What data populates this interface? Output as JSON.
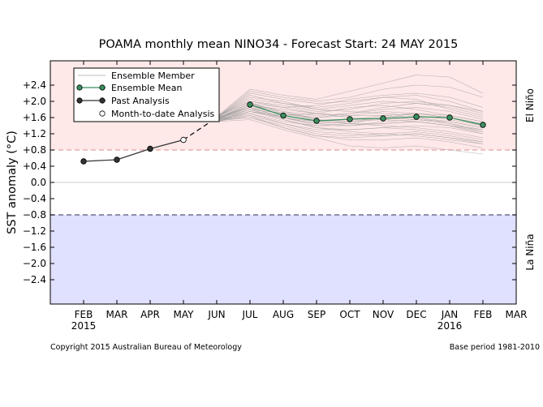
{
  "chart_data": {
    "type": "line",
    "title": "POAMA monthly mean NINO34 - Forecast Start: 24 MAY 2015",
    "ylabel": "SST anomaly (°C)",
    "ylim": [
      -3.0,
      3.0
    ],
    "xlim": [
      0,
      14
    ],
    "x_ticks": [
      {
        "pos": 1,
        "label": "FEB",
        "year": "2015"
      },
      {
        "pos": 2,
        "label": "MAR",
        "year": ""
      },
      {
        "pos": 3,
        "label": "APR",
        "year": ""
      },
      {
        "pos": 4,
        "label": "MAY",
        "year": ""
      },
      {
        "pos": 5,
        "label": "JUN",
        "year": ""
      },
      {
        "pos": 6,
        "label": "JUL",
        "year": ""
      },
      {
        "pos": 7,
        "label": "AUG",
        "year": ""
      },
      {
        "pos": 8,
        "label": "SEP",
        "year": ""
      },
      {
        "pos": 9,
        "label": "OCT",
        "year": ""
      },
      {
        "pos": 10,
        "label": "NOV",
        "year": ""
      },
      {
        "pos": 11,
        "label": "DEC",
        "year": ""
      },
      {
        "pos": 12,
        "label": "JAN",
        "year": "2016"
      },
      {
        "pos": 13,
        "label": "FEB",
        "year": ""
      },
      {
        "pos": 14,
        "label": "MAR",
        "year": ""
      }
    ],
    "y_ticks": [
      {
        "value": 2.4,
        "label": "+2.4"
      },
      {
        "value": 2.0,
        "label": "+2.0"
      },
      {
        "value": 1.6,
        "label": "+1.6"
      },
      {
        "value": 1.2,
        "label": "+1.2"
      },
      {
        "value": 0.8,
        "label": "+0.8"
      },
      {
        "value": 0.4,
        "label": "+0.4"
      },
      {
        "value": 0.0,
        "label": "0.0"
      },
      {
        "value": -0.4,
        "label": "−0.4"
      },
      {
        "value": -0.8,
        "label": "−0.8"
      },
      {
        "value": -1.2,
        "label": "−1.2"
      },
      {
        "value": -1.6,
        "label": "−1.6"
      },
      {
        "value": -2.0,
        "label": "−2.0"
      },
      {
        "value": -2.4,
        "label": "−2.4"
      }
    ],
    "thresholds": {
      "el_nino": 0.8,
      "la_nina": -0.8
    },
    "regions": [
      {
        "name": "El Niño",
        "from": 0.8,
        "to": 3.0,
        "color": "#ffe8e8"
      },
      {
        "name": "La Niña",
        "from": -3.0,
        "to": -0.8,
        "color": "#e0e0ff"
      }
    ],
    "past_analysis": {
      "name": "Past Analysis",
      "x": [
        1,
        2,
        3
      ],
      "y": [
        0.52,
        0.56,
        0.83
      ]
    },
    "month_to_date": {
      "name": "Month-to-date Analysis",
      "x": [
        4
      ],
      "y": [
        1.05
      ]
    },
    "connector": {
      "x": [
        4,
        5
      ],
      "y": [
        1.05,
        1.6
      ]
    },
    "ensemble_mean": {
      "name": "Ensemble Mean",
      "color": "#3a8f5e",
      "x": [
        6,
        7,
        8,
        9,
        10,
        11,
        12,
        13
      ],
      "y": [
        1.92,
        1.65,
        1.52,
        1.56,
        1.58,
        1.62,
        1.6,
        1.42
      ]
    },
    "ensemble_member_label": "Ensemble Member",
    "ensemble_members": [
      [
        1.62,
        2.05,
        1.95,
        1.85,
        1.95,
        2.1,
        2.05,
        1.8,
        1.6
      ],
      [
        1.58,
        1.9,
        1.75,
        1.65,
        1.7,
        1.8,
        1.85,
        1.75,
        1.55
      ],
      [
        1.55,
        1.8,
        1.6,
        1.45,
        1.4,
        1.45,
        1.5,
        1.4,
        1.3
      ],
      [
        1.6,
        2.25,
        2.1,
        2.0,
        2.1,
        2.3,
        2.4,
        2.35,
        2.1
      ],
      [
        1.5,
        1.7,
        1.45,
        1.25,
        1.2,
        1.15,
        1.2,
        1.1,
        1.0
      ],
      [
        1.57,
        1.95,
        1.85,
        1.9,
        2.05,
        2.15,
        2.2,
        2.1,
        1.85
      ],
      [
        1.52,
        1.75,
        1.55,
        1.35,
        1.3,
        1.35,
        1.3,
        1.2,
        1.05
      ],
      [
        1.6,
        2.1,
        2.0,
        1.8,
        1.75,
        1.7,
        1.65,
        1.55,
        1.4
      ],
      [
        1.55,
        1.85,
        1.7,
        1.6,
        1.65,
        1.75,
        1.7,
        1.6,
        1.45
      ],
      [
        1.5,
        1.65,
        1.35,
        1.15,
        1.05,
        1.05,
        1.1,
        1.0,
        0.85
      ],
      [
        1.62,
        2.3,
        2.15,
        2.05,
        2.25,
        2.45,
        2.65,
        2.6,
        2.2
      ],
      [
        1.58,
        1.95,
        1.7,
        1.55,
        1.5,
        1.55,
        1.6,
        1.5,
        1.35
      ],
      [
        1.55,
        1.75,
        1.65,
        1.7,
        1.85,
        1.9,
        1.8,
        1.65,
        1.5
      ],
      [
        1.6,
        2.0,
        1.9,
        1.75,
        1.8,
        1.95,
        2.0,
        1.9,
        1.7
      ],
      [
        1.52,
        1.6,
        1.4,
        1.2,
        1.15,
        1.2,
        1.25,
        1.15,
        1.0
      ],
      [
        1.57,
        1.85,
        1.6,
        1.4,
        1.4,
        1.5,
        1.55,
        1.45,
        1.3
      ],
      [
        1.55,
        1.9,
        1.8,
        1.7,
        1.6,
        1.55,
        1.5,
        1.4,
        1.25
      ],
      [
        1.5,
        1.55,
        1.3,
        1.1,
        0.9,
        0.85,
        0.9,
        0.8,
        0.7
      ],
      [
        1.6,
        2.2,
        2.05,
        1.95,
        2.0,
        2.1,
        2.15,
        2.0,
        1.75
      ],
      [
        1.58,
        1.8,
        1.55,
        1.35,
        1.25,
        1.2,
        1.15,
        1.05,
        0.95
      ],
      [
        1.55,
        1.7,
        1.5,
        1.4,
        1.45,
        1.6,
        1.7,
        1.65,
        1.5
      ],
      [
        1.62,
        2.0,
        1.85,
        1.7,
        1.65,
        1.65,
        1.7,
        1.6,
        1.4
      ],
      [
        1.5,
        1.75,
        1.6,
        1.5,
        1.55,
        1.65,
        1.6,
        1.45,
        1.25
      ],
      [
        1.57,
        1.9,
        1.65,
        1.5,
        1.45,
        1.4,
        1.35,
        1.25,
        1.1
      ],
      [
        1.6,
        2.15,
        1.95,
        1.8,
        1.9,
        2.0,
        1.95,
        1.85,
        1.65
      ],
      [
        1.55,
        1.65,
        1.45,
        1.3,
        1.3,
        1.35,
        1.4,
        1.35,
        1.2
      ],
      [
        1.52,
        1.8,
        1.7,
        1.6,
        1.7,
        1.85,
        1.95,
        1.9,
        1.75
      ],
      [
        1.58,
        1.95,
        1.75,
        1.55,
        1.45,
        1.45,
        1.5,
        1.4,
        1.2
      ],
      [
        1.6,
        1.85,
        1.6,
        1.45,
        1.5,
        1.6,
        1.55,
        1.5,
        1.35
      ],
      [
        1.55,
        1.6,
        1.35,
        1.15,
        1.1,
        1.15,
        1.2,
        1.1,
        0.95
      ]
    ],
    "side_labels": {
      "top": "El Niño",
      "bottom": "La Niña"
    },
    "copyright": "Copyright 2015 Australian Bureau of Meteorology",
    "base_period": "Base period 1981-2010"
  }
}
